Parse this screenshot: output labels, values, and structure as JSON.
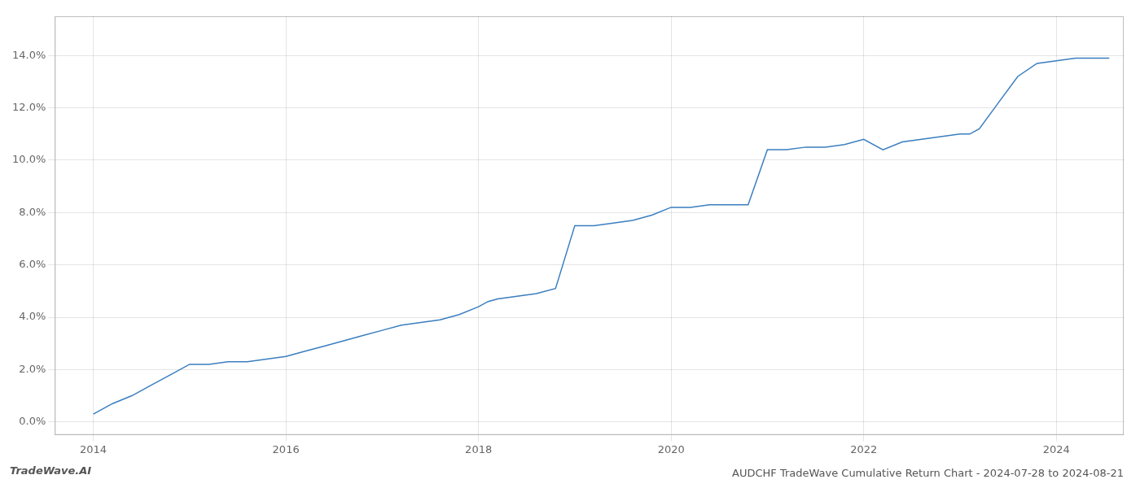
{
  "chart_data": {
    "type": "line",
    "title": "AUDCHF TradeWave Cumulative Return Chart - 2024-07-28 to 2024-08-21",
    "annotations": [
      "TradeWave.AI"
    ],
    "color": "#3a7ebf",
    "x": [
      2014.0,
      2014.2,
      2014.4,
      2014.6,
      2014.8,
      2015.0,
      2015.2,
      2015.4,
      2015.6,
      2015.8,
      2016.0,
      2016.2,
      2016.4,
      2016.6,
      2016.8,
      2017.0,
      2017.2,
      2017.4,
      2017.6,
      2017.8,
      2018.0,
      2018.1,
      2018.2,
      2018.4,
      2018.6,
      2018.8,
      2019.0,
      2019.2,
      2019.4,
      2019.6,
      2019.8,
      2020.0,
      2020.2,
      2020.4,
      2020.6,
      2020.8,
      2021.0,
      2021.2,
      2021.4,
      2021.6,
      2021.8,
      2022.0,
      2022.2,
      2022.4,
      2022.6,
      2022.8,
      2023.0,
      2023.1,
      2023.2,
      2023.4,
      2023.6,
      2023.8,
      2024.0,
      2024.2,
      2024.4,
      2024.55
    ],
    "values": [
      0.003,
      0.007,
      0.01,
      0.014,
      0.018,
      0.022,
      0.022,
      0.023,
      0.023,
      0.024,
      0.025,
      0.027,
      0.029,
      0.031,
      0.033,
      0.035,
      0.037,
      0.038,
      0.039,
      0.041,
      0.044,
      0.046,
      0.047,
      0.048,
      0.049,
      0.051,
      0.075,
      0.075,
      0.076,
      0.077,
      0.079,
      0.082,
      0.082,
      0.083,
      0.083,
      0.083,
      0.104,
      0.104,
      0.105,
      0.105,
      0.106,
      0.108,
      0.104,
      0.107,
      0.108,
      0.109,
      0.11,
      0.11,
      0.112,
      0.122,
      0.132,
      0.137,
      0.138,
      0.139,
      0.139,
      0.139
    ],
    "xlim": [
      2013.6,
      2024.7
    ],
    "ylim": [
      -0.005,
      0.155
    ],
    "xticks": [
      2014,
      2016,
      2018,
      2020,
      2022,
      2024
    ],
    "yticks": [
      {
        "value": 0.0,
        "label": "0.0%"
      },
      {
        "value": 0.02,
        "label": "2.0%"
      },
      {
        "value": 0.04,
        "label": "4.0%"
      },
      {
        "value": 0.06,
        "label": "6.0%"
      },
      {
        "value": 0.08,
        "label": "8.0%"
      },
      {
        "value": 0.1,
        "label": "10.0%"
      },
      {
        "value": 0.12,
        "label": "12.0%"
      },
      {
        "value": 0.14,
        "label": "14.0%"
      }
    ],
    "grid": true
  }
}
